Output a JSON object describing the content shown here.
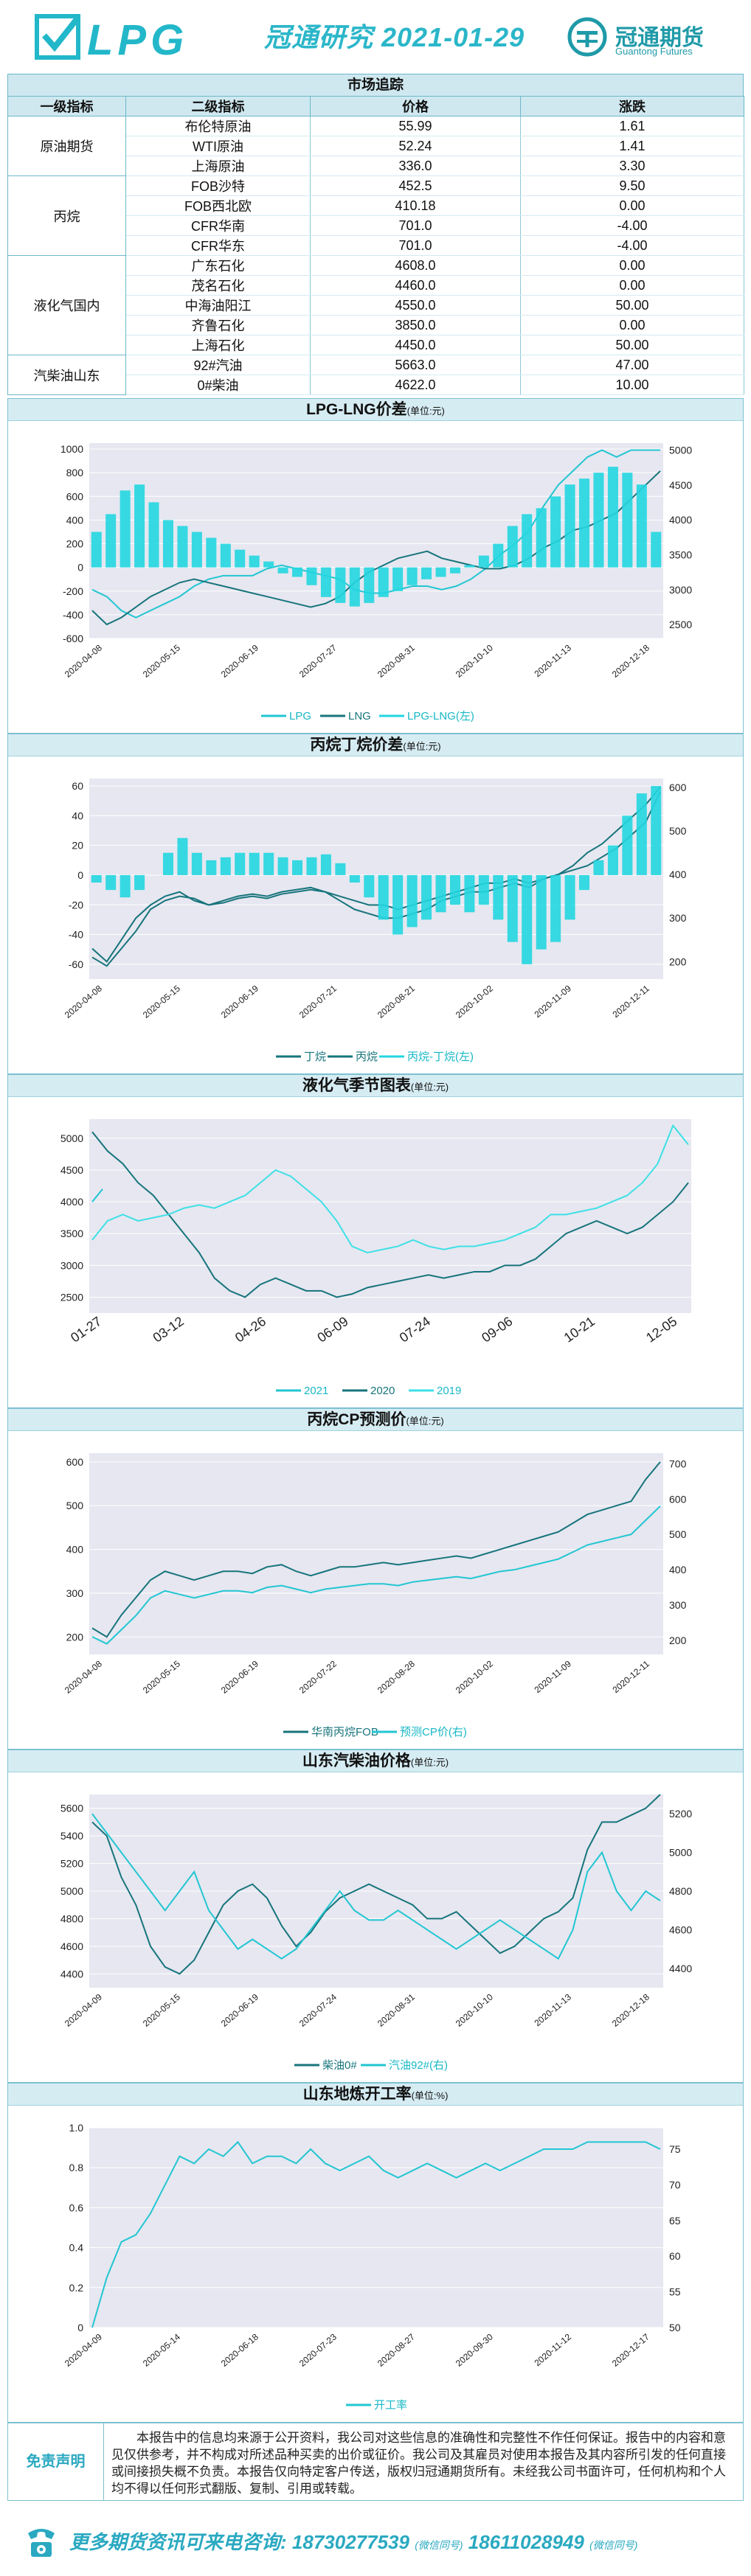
{
  "header": {
    "logo_text": "LPG",
    "title": "冠通研究 2021-01-29",
    "brand_name": "冠通期货",
    "brand_sub": "Guantong Futures"
  },
  "market": {
    "title": "市场追踪",
    "headers": [
      "一级指标",
      "二级指标",
      "价格",
      "涨跌"
    ],
    "groups": [
      {
        "category": "原油期货",
        "rows": [
          {
            "name": "布伦特原油",
            "price": "55.99",
            "change": "1.61"
          },
          {
            "name": "WTI原油",
            "price": "52.24",
            "change": "1.41"
          },
          {
            "name": "上海原油",
            "price": "336.0",
            "change": "3.30"
          }
        ]
      },
      {
        "category": "丙烷",
        "rows": [
          {
            "name": "FOB沙特",
            "price": "452.5",
            "change": "9.50"
          },
          {
            "name": "FOB西北欧",
            "price": "410.18",
            "change": "0.00"
          },
          {
            "name": "CFR华南",
            "price": "701.0",
            "change": "-4.00"
          },
          {
            "name": "CFR华东",
            "price": "701.0",
            "change": "-4.00"
          }
        ]
      },
      {
        "category": "液化气国内",
        "rows": [
          {
            "name": "广东石化",
            "price": "4608.0",
            "change": "0.00"
          },
          {
            "name": "茂名石化",
            "price": "4460.0",
            "change": "0.00"
          },
          {
            "name": "中海油阳江",
            "price": "4550.0",
            "change": "50.00"
          },
          {
            "name": "齐鲁石化",
            "price": "3850.0",
            "change": "0.00"
          },
          {
            "name": "上海石化",
            "price": "4450.0",
            "change": "50.00"
          }
        ]
      },
      {
        "category": "汽柴油山东",
        "rows": [
          {
            "name": "92#汽油",
            "price": "5663.0",
            "change": "47.00"
          },
          {
            "name": "0#柴油",
            "price": "4622.0",
            "change": "10.00"
          }
        ]
      }
    ]
  },
  "colors": {
    "accent": "#2bb6c9",
    "dark_teal": "#17747c",
    "cyan": "#22d6e0",
    "plot_bg": "#e6e7f0"
  },
  "chart_data": [
    {
      "type": "line",
      "id": "lpg_lng",
      "title": "LPG-LNG价差",
      "unit": "(单位:元)",
      "x_ticks": [
        "2020-04-08",
        "2020-05-15",
        "2020-06-19",
        "2020-07-27",
        "2020-08-31",
        "2020-10-10",
        "2020-11-13",
        "2020-12-18"
      ],
      "y_left_ticks": [
        -600,
        -400,
        -200,
        0,
        200,
        400,
        600,
        800,
        1000
      ],
      "y_right_ticks": [
        2500,
        3000,
        3500,
        4000,
        4500,
        5000
      ],
      "ylim_left": [
        -600,
        1050
      ],
      "ylim_right": [
        2300,
        5100
      ],
      "series": [
        {
          "name": "LPG",
          "axis": "right",
          "style": "line",
          "color": "#22c6d2",
          "values": [
            3000,
            2900,
            2700,
            2600,
            2700,
            2800,
            2900,
            3050,
            3150,
            3200,
            3200,
            3200,
            3300,
            3350,
            3300,
            3250,
            3200,
            3150,
            3000,
            2950,
            2950,
            3000,
            3050,
            3050,
            3000,
            3050,
            3150,
            3300,
            3500,
            3650,
            3850,
            4200,
            4500,
            4700,
            4900,
            5000,
            4900,
            5000,
            5000,
            5000
          ]
        },
        {
          "name": "LNG",
          "axis": "right",
          "style": "line",
          "color": "#17747c",
          "values": [
            2700,
            2500,
            2600,
            2750,
            2900,
            3000,
            3100,
            3150,
            3100,
            3050,
            3000,
            2950,
            2900,
            2850,
            2800,
            2750,
            2800,
            2900,
            3100,
            3250,
            3350,
            3450,
            3500,
            3550,
            3450,
            3400,
            3350,
            3300,
            3300,
            3350,
            3450,
            3600,
            3700,
            3850,
            3900,
            4000,
            4100,
            4300,
            4500,
            4700
          ]
        },
        {
          "name": "LPG-LNG(左)",
          "axis": "left",
          "style": "bar",
          "color": "#22d6e0",
          "values": [
            300,
            450,
            650,
            700,
            550,
            400,
            350,
            300,
            250,
            200,
            150,
            100,
            50,
            -50,
            -80,
            -150,
            -250,
            -300,
            -330,
            -300,
            -250,
            -200,
            -150,
            -100,
            -80,
            -50,
            20,
            100,
            200,
            350,
            450,
            500,
            600,
            700,
            750,
            800,
            850,
            800,
            700,
            300
          ]
        }
      ]
    },
    {
      "type": "line",
      "id": "propane_butane",
      "title": "丙烷丁烷价差",
      "unit": "(单位:元)",
      "x_ticks": [
        "2020-04-08",
        "2020-05-15",
        "2020-06-19",
        "2020-07-21",
        "2020-08-21",
        "2020-10-02",
        "2020-11-09",
        "2020-12-11"
      ],
      "y_left_ticks": [
        -60,
        -40,
        -20,
        0,
        20,
        40,
        60
      ],
      "y_right_ticks": [
        200,
        300,
        400,
        500,
        600
      ],
      "ylim_left": [
        -70,
        65
      ],
      "ylim_right": [
        160,
        620
      ],
      "series": [
        {
          "name": "丁烷",
          "axis": "right",
          "style": "line",
          "color": "#17747c",
          "values": [
            230,
            200,
            250,
            300,
            330,
            350,
            360,
            340,
            330,
            340,
            350,
            355,
            350,
            360,
            365,
            370,
            360,
            350,
            340,
            330,
            330,
            320,
            330,
            340,
            350,
            360,
            370,
            380,
            380,
            390,
            380,
            390,
            400,
            410,
            420,
            440,
            460,
            490,
            520,
            590
          ]
        },
        {
          "name": "丙烷",
          "axis": "right",
          "style": "line",
          "color": "#17747c",
          "values": [
            210,
            190,
            230,
            270,
            320,
            340,
            350,
            345,
            330,
            335,
            345,
            350,
            345,
            355,
            360,
            365,
            360,
            340,
            320,
            310,
            300,
            300,
            310,
            320,
            340,
            350,
            360,
            360,
            370,
            380,
            370,
            390,
            400,
            420,
            450,
            470,
            500,
            530,
            560,
            600
          ]
        },
        {
          "name": "丙烷-丁烷(左)",
          "axis": "left",
          "style": "bar",
          "color": "#22d6e0",
          "values": [
            -5,
            -10,
            -15,
            -10,
            0,
            15,
            25,
            15,
            10,
            12,
            15,
            15,
            15,
            12,
            10,
            12,
            14,
            8,
            -5,
            -15,
            -30,
            -40,
            -35,
            -30,
            -25,
            -20,
            -25,
            -20,
            -30,
            -45,
            -60,
            -50,
            -45,
            -30,
            -10,
            10,
            20,
            40,
            55,
            60
          ]
        }
      ]
    },
    {
      "type": "line",
      "id": "seasonal",
      "title": "液化气季节图表",
      "unit": "(单位:元)",
      "x_ticks": [
        "01-27",
        "03-12",
        "04-26",
        "06-09",
        "07-24",
        "09-06",
        "10-21",
        "12-05"
      ],
      "y_left_ticks": [
        2500,
        3000,
        3500,
        4000,
        4500,
        5000
      ],
      "ylim_left": [
        2250,
        5300
      ],
      "series": [
        {
          "name": "2021",
          "style": "line",
          "color": "#22c6d2",
          "values": [
            4000,
            4200
          ]
        },
        {
          "name": "2020",
          "style": "line",
          "color": "#17747c",
          "values": [
            5100,
            4800,
            4600,
            4300,
            4100,
            3800,
            3500,
            3200,
            2800,
            2600,
            2500,
            2700,
            2800,
            2700,
            2600,
            2600,
            2500,
            2550,
            2650,
            2700,
            2750,
            2800,
            2850,
            2800,
            2850,
            2900,
            2900,
            3000,
            3000,
            3100,
            3300,
            3500,
            3600,
            3700,
            3600,
            3500,
            3600,
            3800,
            4000,
            4300
          ]
        },
        {
          "name": "2019",
          "style": "line",
          "color": "#3ee0e6",
          "values": [
            3400,
            3700,
            3800,
            3700,
            3750,
            3800,
            3900,
            3950,
            3900,
            4000,
            4100,
            4300,
            4500,
            4400,
            4200,
            4000,
            3700,
            3300,
            3200,
            3250,
            3300,
            3400,
            3300,
            3250,
            3300,
            3300,
            3350,
            3400,
            3500,
            3600,
            3800,
            3800,
            3850,
            3900,
            4000,
            4100,
            4300,
            4600,
            5200,
            4900
          ]
        }
      ]
    },
    {
      "type": "line",
      "id": "cp_forecast",
      "title": "丙烷CP预测价",
      "unit": "(单位:元)",
      "x_ticks": [
        "2020-04-08",
        "2020-05-15",
        "2020-06-19",
        "2020-07-22",
        "2020-08-28",
        "2020-10-02",
        "2020-11-09",
        "2020-12-11"
      ],
      "y_left_ticks": [
        200,
        300,
        400,
        500,
        600
      ],
      "y_right_ticks": [
        200,
        300,
        400,
        500,
        600,
        700
      ],
      "ylim_left": [
        160,
        620
      ],
      "ylim_right": [
        160,
        730
      ],
      "series": [
        {
          "name": "华南丙烷FOB",
          "axis": "left",
          "style": "line",
          "color": "#17747c",
          "values": [
            220,
            200,
            250,
            290,
            330,
            350,
            340,
            330,
            340,
            350,
            350,
            345,
            360,
            365,
            350,
            340,
            350,
            360,
            360,
            365,
            370,
            365,
            370,
            375,
            380,
            385,
            380,
            390,
            400,
            410,
            420,
            430,
            440,
            460,
            480,
            490,
            500,
            510,
            560,
            600
          ]
        },
        {
          "name": "预测CP价(右)",
          "axis": "right",
          "style": "line",
          "color": "#22c6d2",
          "values": [
            210,
            190,
            230,
            270,
            320,
            340,
            330,
            320,
            330,
            340,
            340,
            335,
            350,
            355,
            345,
            335,
            345,
            350,
            355,
            360,
            360,
            355,
            365,
            370,
            375,
            380,
            375,
            385,
            395,
            400,
            410,
            420,
            430,
            450,
            470,
            480,
            490,
            500,
            540,
            580
          ]
        }
      ]
    },
    {
      "type": "line",
      "id": "diesel_gasoline",
      "title": "山东汽柴油价格",
      "unit": "(单位:元)",
      "x_ticks": [
        "2020-04-09",
        "2020-05-15",
        "2020-06-19",
        "2020-07-24",
        "2020-08-31",
        "2020-10-10",
        "2020-11-13",
        "2020-12-18"
      ],
      "y_left_ticks": [
        4400,
        4600,
        4800,
        5000,
        5200,
        5400,
        5600
      ],
      "y_right_ticks": [
        4400,
        4600,
        4800,
        5000,
        5200
      ],
      "ylim_left": [
        4300,
        5700
      ],
      "ylim_right": [
        4300,
        5300
      ],
      "series": [
        {
          "name": "柴油0#",
          "axis": "left",
          "style": "line",
          "color": "#17747c",
          "values": [
            5500,
            5400,
            5100,
            4900,
            4600,
            4450,
            4400,
            4500,
            4700,
            4900,
            5000,
            5050,
            4950,
            4750,
            4600,
            4700,
            4850,
            4950,
            5000,
            5050,
            5000,
            4950,
            4900,
            4800,
            4800,
            4850,
            4750,
            4650,
            4550,
            4600,
            4700,
            4800,
            4850,
            4950,
            5300,
            5500,
            5500,
            5550,
            5600,
            5700
          ]
        },
        {
          "name": "汽油92#(右)",
          "axis": "right",
          "style": "line",
          "color": "#22c6d2",
          "values": [
            5200,
            5100,
            5000,
            4900,
            4800,
            4700,
            4800,
            4900,
            4700,
            4600,
            4500,
            4550,
            4500,
            4450,
            4500,
            4600,
            4700,
            4800,
            4700,
            4650,
            4650,
            4700,
            4650,
            4600,
            4550,
            4500,
            4550,
            4600,
            4650,
            4600,
            4550,
            4500,
            4450,
            4600,
            4900,
            5000,
            4800,
            4700,
            4800,
            4750
          ]
        }
      ]
    },
    {
      "type": "line",
      "id": "operating_rate",
      "title": "山东地炼开工率",
      "unit": "(单位:%)",
      "x_ticks": [
        "2020-04-09",
        "2020-05-14",
        "2020-06-18",
        "2020-07-23",
        "2020-08-27",
        "2020-09-30",
        "2020-11-12",
        "2020-12-17"
      ],
      "y_left_ticks": [
        "0",
        "0.2",
        "0.4",
        "0.6",
        "0.8",
        "1.0"
      ],
      "y_right_ticks": [
        50,
        55,
        60,
        65,
        70,
        75
      ],
      "ylim_left": [
        0,
        1
      ],
      "ylim_right": [
        50,
        78
      ],
      "series": [
        {
          "name": "开工率",
          "axis": "right",
          "style": "line",
          "color": "#22c6d2",
          "values": [
            50,
            57,
            62,
            63,
            66,
            70,
            74,
            73,
            75,
            74,
            76,
            73,
            74,
            74,
            73,
            75,
            73,
            72,
            73,
            74,
            72,
            71,
            72,
            73,
            72,
            71,
            72,
            73,
            72,
            73,
            74,
            75,
            75,
            75,
            76,
            76,
            76,
            76,
            76,
            75
          ]
        }
      ]
    }
  ],
  "disclaimer": {
    "label": "免责声明",
    "text": "本报告中的信息均来源于公开资料，我公司对这些信息的准确性和完整性不作任何保证。报告中的内容和意见仅供参考，并不构成对所述品种买卖的出价或征价。我公司及其雇员对使用本报告及其内容所引发的任何直接或间接损失概不负责。本报告仅向特定客户传送，版权归冠通期货所有。未经我公司书面许可，任何机构和个人均不得以任何形式翻版、复制、引用或转载。"
  },
  "footer": {
    "lead": "更多期货资讯可来电咨询:",
    "phone1": "18730277539",
    "note1": "(微信同号)",
    "phone2": "18611028949",
    "note2": "(微信同号)"
  }
}
